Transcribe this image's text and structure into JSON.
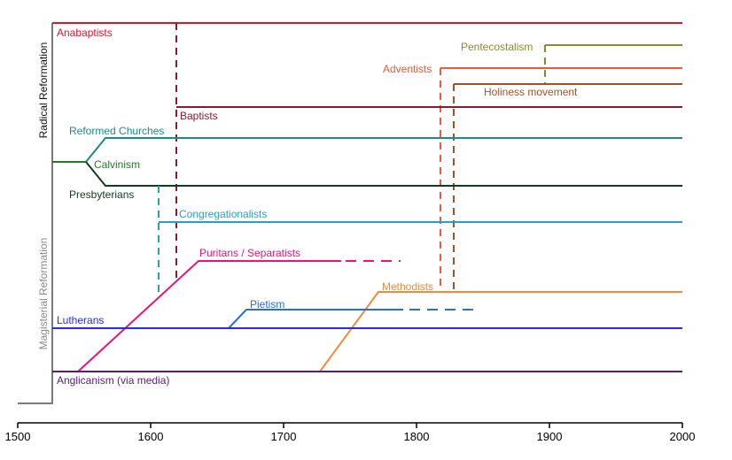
{
  "axis": {
    "ticks": [
      "1500",
      "1600",
      "1700",
      "1800",
      "1900",
      "2000"
    ]
  },
  "groups": {
    "radical": "Radical Reformation",
    "magisterial": "Magisterial Reformation"
  },
  "labels": {
    "anabaptists": "Anabaptists",
    "pentecostalism": "Pentecostalism",
    "adventists": "Adventists",
    "holiness": "Holiness movement",
    "baptists": "Baptists",
    "reformed": "Reformed Churches",
    "calvinism": "Calvinism",
    "presbyterians": "Presbyterians",
    "congregationalists": "Congregationalists",
    "puritans": "Puritans / Separatists",
    "methodists": "Methodists",
    "pietism": "Pietism",
    "lutherans": "Lutherans",
    "anglicanism": "Anglicanism (via media)"
  },
  "colors": {
    "anabaptists": "#e8102a",
    "baptists": "#8b1a2c",
    "pentecostalism": "#8a8a2e",
    "adventists": "#f0583a",
    "holiness": "#9b5528",
    "reformed": "#1a8a8c",
    "calvinism": "#1f7a2a",
    "presbyterians": "#0f3d1f",
    "congregationalists": "#2aa0c0",
    "puritans": "#e8147a",
    "methodists": "#f08a3c",
    "pietism": "#2a6ed8",
    "lutherans": "#2a2ae8",
    "anglicanism": "#5a1a7a",
    "trunk": "#7a7a7a"
  }
}
